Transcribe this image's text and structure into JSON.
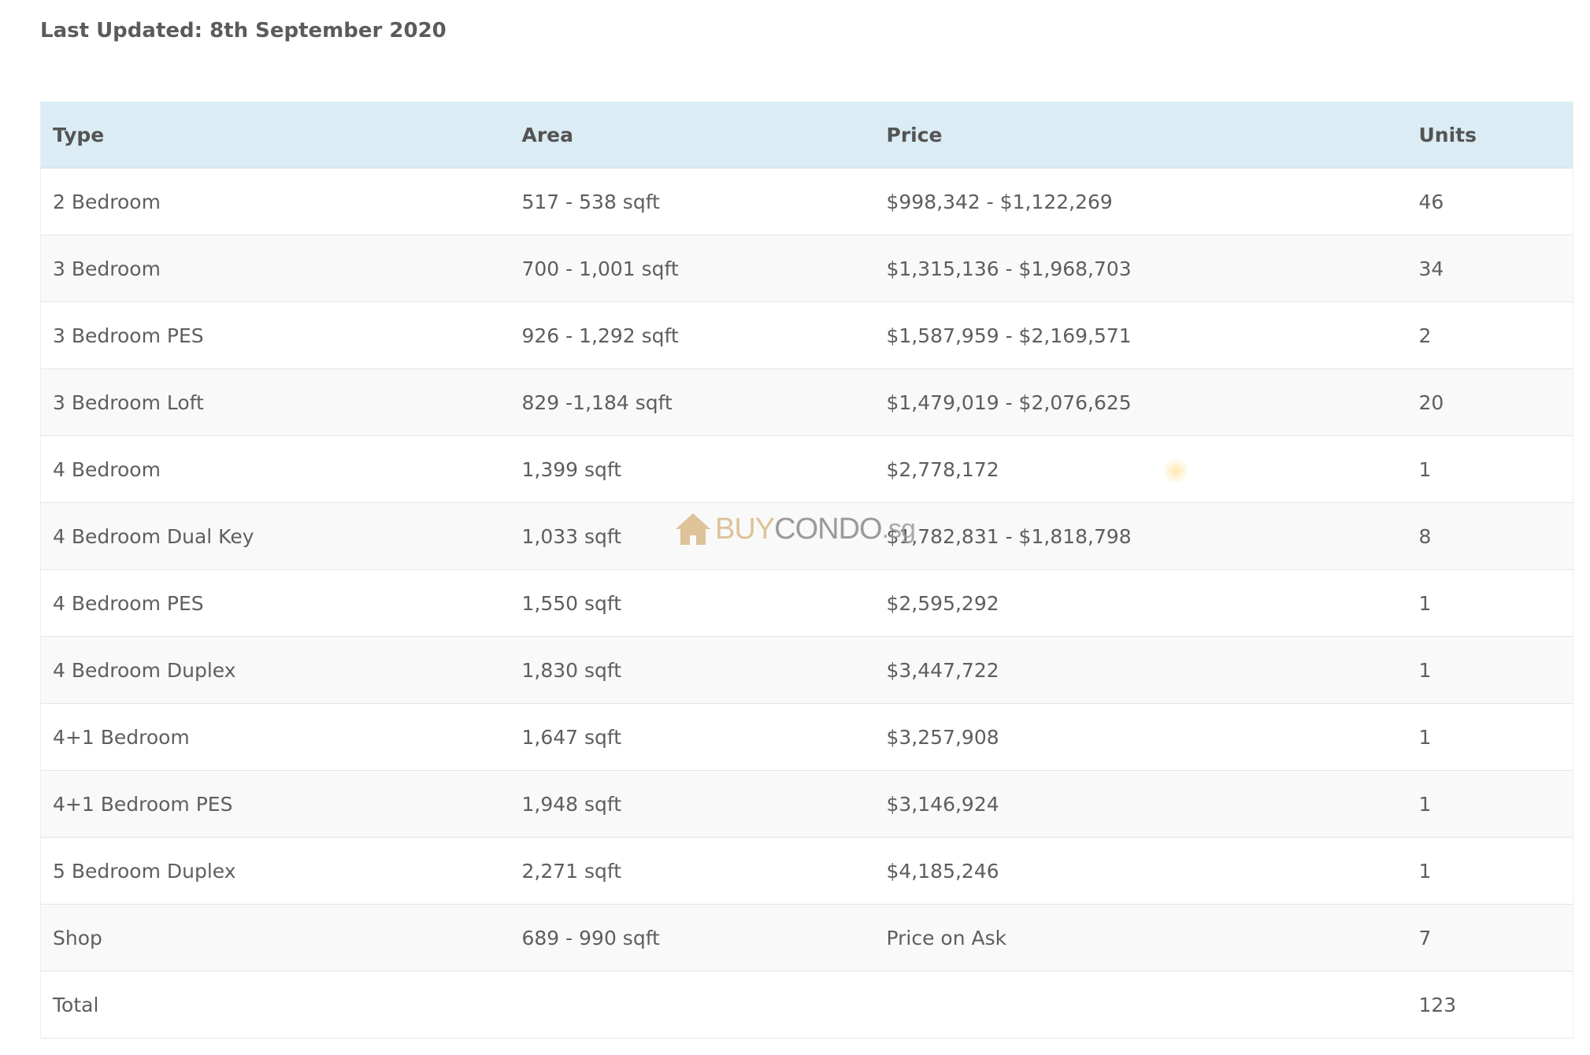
{
  "header": {
    "last_updated": "Last Updated: 8th September 2020"
  },
  "table": {
    "columns": [
      "Type",
      "Area",
      "Price",
      "Units"
    ],
    "rows": [
      {
        "type": "2 Bedroom",
        "area": "517 - 538 sqft",
        "price": "$998,342 - $1,122,269",
        "units": "46"
      },
      {
        "type": "3 Bedroom",
        "area": "700 - 1,001 sqft",
        "price": "$1,315,136 - $1,968,703",
        "units": "34"
      },
      {
        "type": "3 Bedroom PES",
        "area": "926 - 1,292 sqft",
        "price": "$1,587,959 - $2,169,571",
        "units": "2"
      },
      {
        "type": "3 Bedroom Loft",
        "area": "829 -1,184 sqft",
        "price": "$1,479,019 - $2,076,625",
        "units": "20"
      },
      {
        "type": "4 Bedroom",
        "area": "1,399 sqft",
        "price": "$2,778,172",
        "units": "1"
      },
      {
        "type": "4 Bedroom Dual Key",
        "area": "1,033 sqft",
        "price": "$1,782,831 - $1,818,798",
        "units": "8"
      },
      {
        "type": "4 Bedroom PES",
        "area": "1,550 sqft",
        "price": "$2,595,292",
        "units": "1"
      },
      {
        "type": "4 Bedroom Duplex",
        "area": "1,830 sqft",
        "price": "$3,447,722",
        "units": "1"
      },
      {
        "type": "4+1 Bedroom",
        "area": "1,647 sqft",
        "price": "$3,257,908",
        "units": "1"
      },
      {
        "type": "4+1 Bedroom PES",
        "area": "1,948 sqft",
        "price": "$3,146,924",
        "units": "1"
      },
      {
        "type": "5 Bedroom Duplex",
        "area": "2,271 sqft",
        "price": "$4,185,246",
        "units": "1"
      },
      {
        "type": "Shop",
        "area": "689 - 990 sqft",
        "price": "Price on Ask",
        "units": "7"
      },
      {
        "type": "Total",
        "area": "",
        "price": "",
        "units": "123"
      }
    ]
  },
  "watermark": {
    "icon": "house-icon",
    "part_a": "BUY",
    "part_b": "CONDO",
    "part_c": ".sg",
    "color_a": "#d9b98a",
    "color_b": "#8a8a8a"
  }
}
